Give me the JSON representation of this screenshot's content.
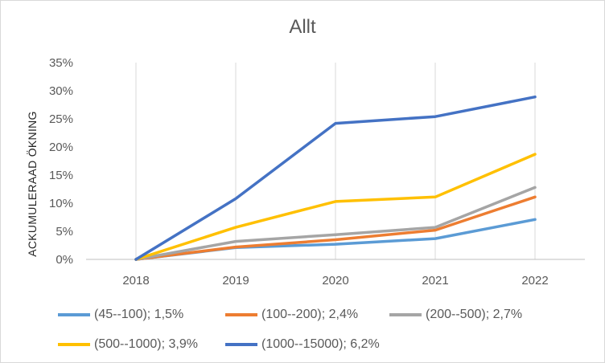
{
  "chart_data": {
    "type": "line",
    "title": "Allt",
    "ylabel": "ACKUMULERAAD ÖKNING",
    "xlabel": "",
    "categories": [
      "2018",
      "2019",
      "2020",
      "2021",
      "2022"
    ],
    "ylim": [
      0,
      35
    ],
    "yticks": [
      "0%",
      "5%",
      "10%",
      "15%",
      "20%",
      "25%",
      "30%",
      "35%"
    ],
    "grid": "vertical",
    "legend_position": "bottom",
    "series": [
      {
        "name": "(45--100); 1,5%",
        "color": "#5b9bd5",
        "values": [
          0,
          2.1,
          2.7,
          3.7,
          7.1
        ]
      },
      {
        "name": "(100--200); 2,4%",
        "color": "#ed7d31",
        "values": [
          0,
          2.2,
          3.5,
          5.2,
          11.1
        ]
      },
      {
        "name": "(200--500); 2,7%",
        "color": "#a5a5a5",
        "values": [
          0,
          3.2,
          4.4,
          5.7,
          12.8
        ]
      },
      {
        "name": "(500--1000); 3,9%",
        "color": "#ffc000",
        "values": [
          0,
          5.7,
          10.3,
          11.1,
          18.7
        ]
      },
      {
        "name": "(1000--15000); 6,2%",
        "color": "#4472c4",
        "values": [
          0,
          10.8,
          24.2,
          25.4,
          28.9
        ]
      }
    ]
  }
}
